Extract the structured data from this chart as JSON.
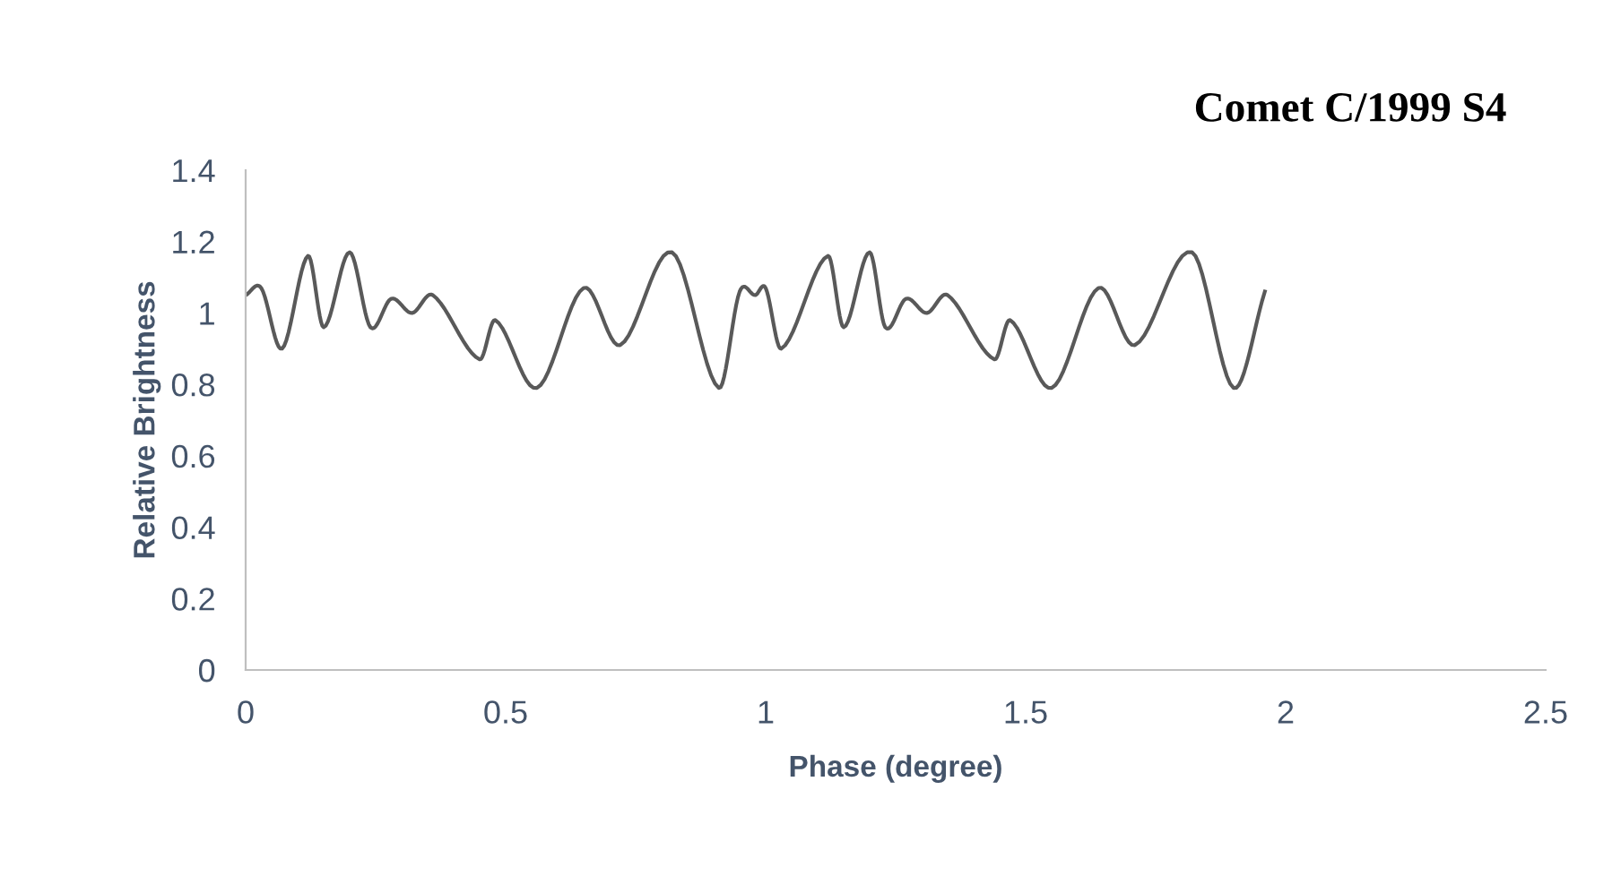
{
  "chart_data": {
    "type": "line",
    "title": "Comet C/1999 S4",
    "xlabel": "Phase (degree)",
    "ylabel": "Relative Brightness",
    "xlim": [
      0,
      2.5
    ],
    "xticks": [
      0,
      0.5,
      1,
      1.5,
      2,
      2.5
    ],
    "ylim": [
      0,
      1.4
    ],
    "yticks": [
      0,
      0.2,
      0.4,
      0.6,
      0.8,
      1,
      1.2,
      1.4
    ],
    "grid": false,
    "legend": false,
    "marker": "none",
    "line_style": "solid",
    "series": [
      {
        "color": "#595959",
        "x": [
          0,
          0.03,
          0.07,
          0.12,
          0.15,
          0.2,
          0.24,
          0.28,
          0.32,
          0.36,
          0.45,
          0.48,
          0.56,
          0.65,
          0.72,
          0.82,
          0.91,
          0.95,
          0.98,
          1.0,
          1.03,
          1.12,
          1.15,
          1.2,
          1.23,
          1.27,
          1.31,
          1.35,
          1.44,
          1.47,
          1.55,
          1.64,
          1.71,
          1.82,
          1.9,
          1.96
        ],
        "values": [
          1.05,
          1.07,
          0.9,
          1.16,
          0.96,
          1.17,
          0.96,
          1.04,
          1.0,
          1.05,
          0.87,
          0.98,
          0.79,
          1.07,
          0.91,
          1.17,
          0.79,
          1.06,
          1.05,
          1.07,
          0.9,
          1.16,
          0.96,
          1.17,
          0.96,
          1.04,
          1.0,
          1.05,
          0.87,
          0.98,
          0.79,
          1.07,
          0.91,
          1.17,
          0.79,
          1.06
        ]
      }
    ]
  }
}
